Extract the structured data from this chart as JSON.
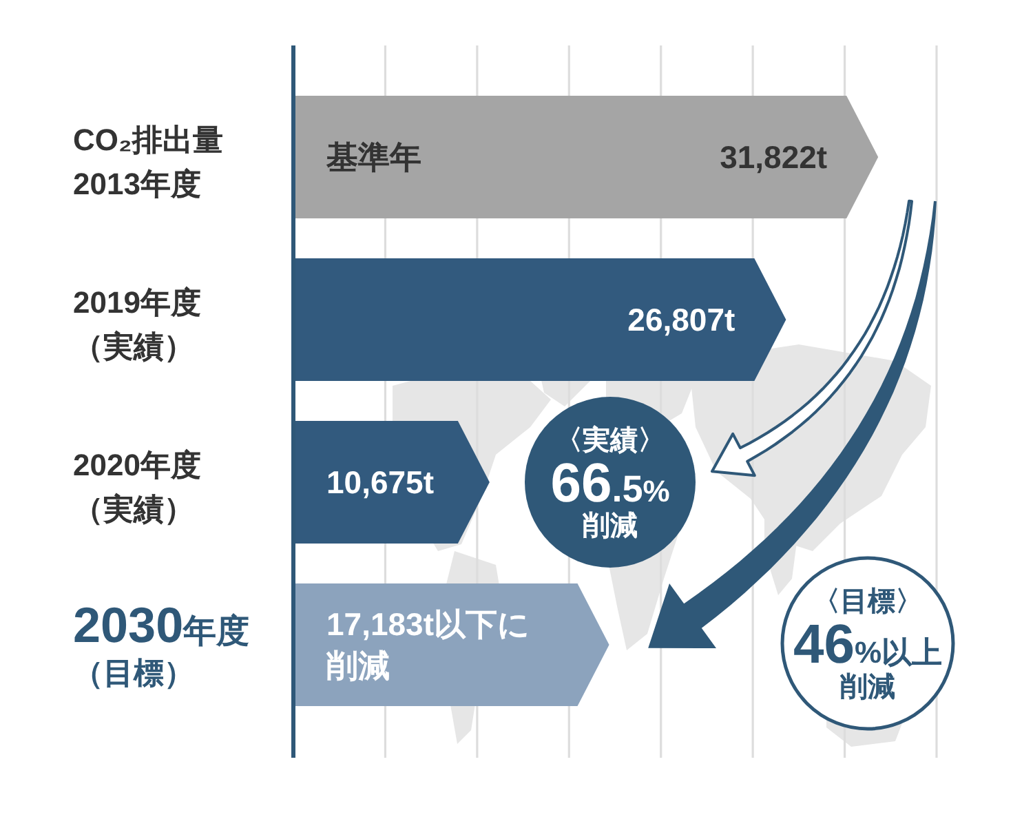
{
  "chart_data": {
    "type": "bar",
    "orientation": "horizontal",
    "categories": [
      "CO₂排出量\n2013年度",
      "2019年度（実績）",
      "2020年度（実績）",
      "2030年度（目標）"
    ],
    "values": [
      31822,
      26807,
      10675,
      17183
    ],
    "colors": [
      "#a5a5a5",
      "#325a7e",
      "#325a7e",
      "#8ca3bd"
    ],
    "value_labels": [
      "31,822t",
      "26,807t",
      "10,675t",
      "17,183t以下に削減"
    ],
    "xlim": [
      0,
      35000
    ],
    "xticks": [
      {
        "value": 5000,
        "label": null
      },
      {
        "value": 10000,
        "label": null
      },
      {
        "value": 15000,
        "label": null
      },
      {
        "value": 20000,
        "label": null
      },
      {
        "value": 25000,
        "label": null
      },
      {
        "value": 30000,
        "label": null
      },
      {
        "value": 35000,
        "label": null
      }
    ],
    "grid": "x",
    "tick_labels": "y",
    "annotations": [
      {
        "text": "基準年",
        "x": 0,
        "y": "CO₂排出量\n2013年度"
      },
      "〈実績〉66.5%\n削減",
      "〈目標〉46%以上削減"
    ]
  }
}
